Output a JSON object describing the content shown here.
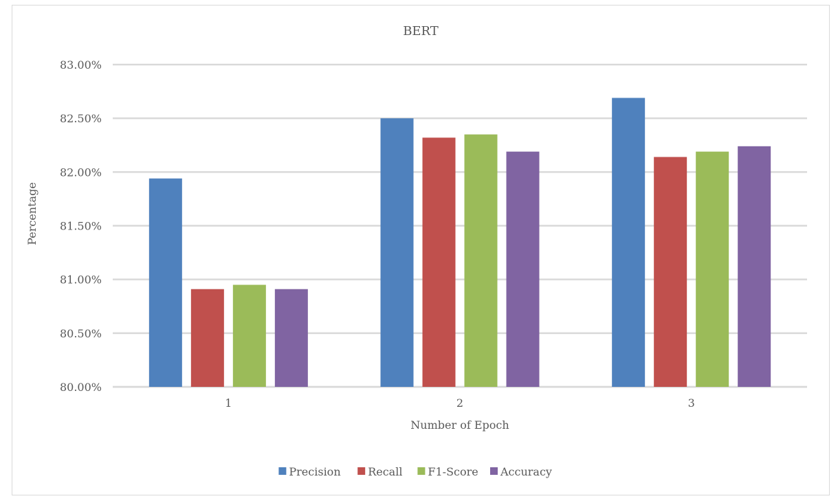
{
  "chart_data": {
    "type": "bar",
    "title": "BERT",
    "xlabel": "Number of Epoch",
    "ylabel": "Percentage",
    "categories": [
      "1",
      "2",
      "3"
    ],
    "ylim": [
      80.0,
      83.0
    ],
    "yticks": [
      "80.00%",
      "80.50%",
      "81.00%",
      "81.50%",
      "82.00%",
      "82.50%",
      "83.00%"
    ],
    "grid": true,
    "legend_position": "bottom",
    "series": [
      {
        "name": "Precision",
        "color": "#4f81bd",
        "values": [
          81.94,
          82.5,
          82.69
        ]
      },
      {
        "name": "Recall",
        "color": "#c0504d",
        "values": [
          80.91,
          82.32,
          82.14
        ]
      },
      {
        "name": "F1-Score",
        "color": "#9bbb59",
        "values": [
          80.95,
          82.35,
          82.19
        ]
      },
      {
        "name": "Accuracy",
        "color": "#8064a2",
        "values": [
          80.91,
          82.19,
          82.24
        ]
      }
    ]
  }
}
